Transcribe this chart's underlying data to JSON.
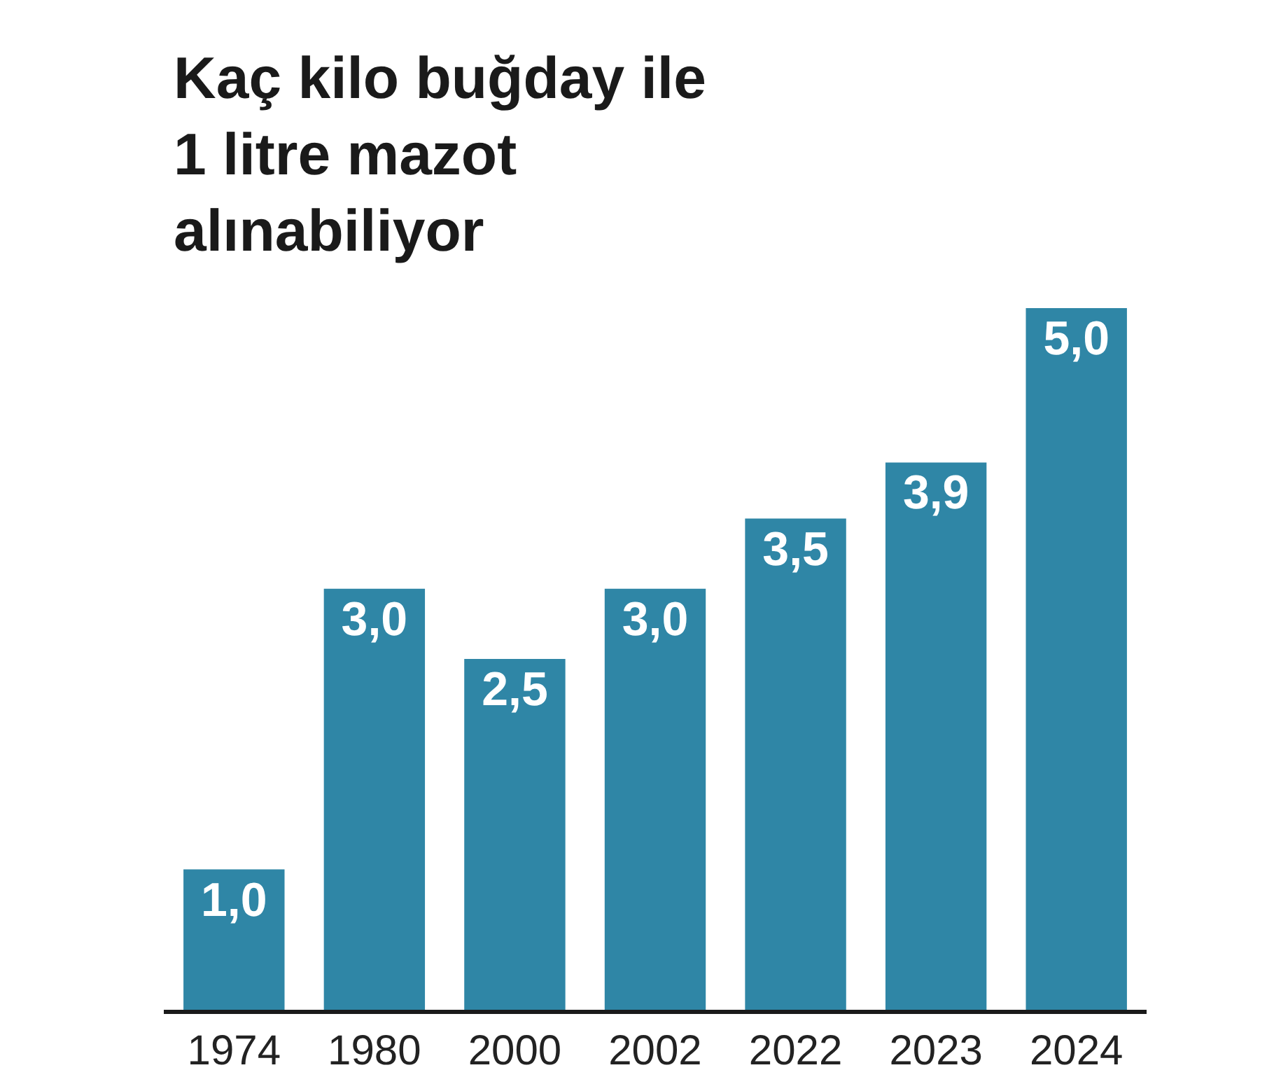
{
  "chart_data": {
    "type": "bar",
    "title": "Kaç kilo buğday ile\n1 litre mazot\nalınabiliyor",
    "categories": [
      "1974",
      "1980",
      "2000",
      "2002",
      "2022",
      "2023",
      "2024"
    ],
    "values": [
      1.0,
      3.0,
      2.5,
      3.0,
      3.5,
      3.9,
      5.0
    ],
    "value_labels": [
      "1,0",
      "3,0",
      "2,5",
      "3,0",
      "3,5",
      "3,9",
      "5,0"
    ],
    "color": "#2f86a6",
    "ylim": [
      0,
      5.0
    ],
    "tick_labels": "x"
  }
}
